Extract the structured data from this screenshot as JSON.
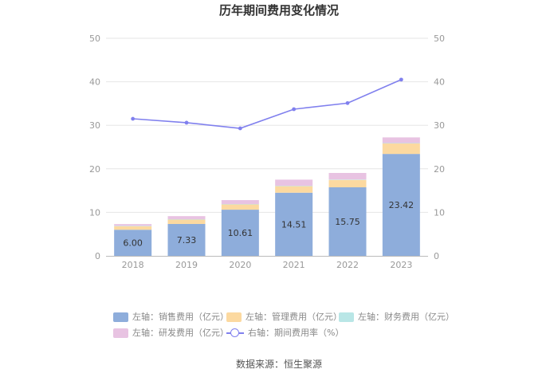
{
  "chart_data": {
    "type": "bar",
    "title": "历年期间费用变化情况",
    "categories": [
      "2018",
      "2019",
      "2020",
      "2021",
      "2022",
      "2023"
    ],
    "series": [
      {
        "name": "左轴：销售费用（亿元）",
        "kind": "bar",
        "color": "#8eaddb",
        "values": [
          6.0,
          7.33,
          10.61,
          14.51,
          15.75,
          23.42
        ],
        "show_labels": true
      },
      {
        "name": "左轴：管理费用（亿元）",
        "kind": "bar",
        "color": "#fcd9a0",
        "values": [
          0.8,
          1.0,
          1.2,
          1.5,
          1.7,
          2.4
        ],
        "show_labels": false
      },
      {
        "name": "左轴：财务费用（亿元）",
        "kind": "bar",
        "color": "#b9e6e6",
        "values": [
          0.1,
          0.1,
          0.1,
          0.1,
          0.1,
          0.1
        ],
        "show_labels": false
      },
      {
        "name": "左轴：研发费用（亿元）",
        "kind": "bar",
        "color": "#e8c3e2",
        "values": [
          0.4,
          0.7,
          0.9,
          1.4,
          1.5,
          1.3
        ],
        "show_labels": false
      },
      {
        "name": "右轴：期间费用率（%）",
        "kind": "line",
        "color": "#8080ee",
        "values": [
          31.5,
          30.6,
          29.3,
          33.7,
          35.1,
          40.5
        ]
      }
    ],
    "y_left": {
      "min": 0,
      "max": 50,
      "ticks": [
        "0",
        "10",
        "20",
        "30",
        "40",
        "50"
      ]
    },
    "y_right": {
      "min": 0,
      "max": 50,
      "ticks": [
        "0",
        "10",
        "20",
        "30",
        "40",
        "50"
      ]
    },
    "grid": true,
    "legend_position": "bottom"
  },
  "source_text": "数据来源：恒生聚源"
}
